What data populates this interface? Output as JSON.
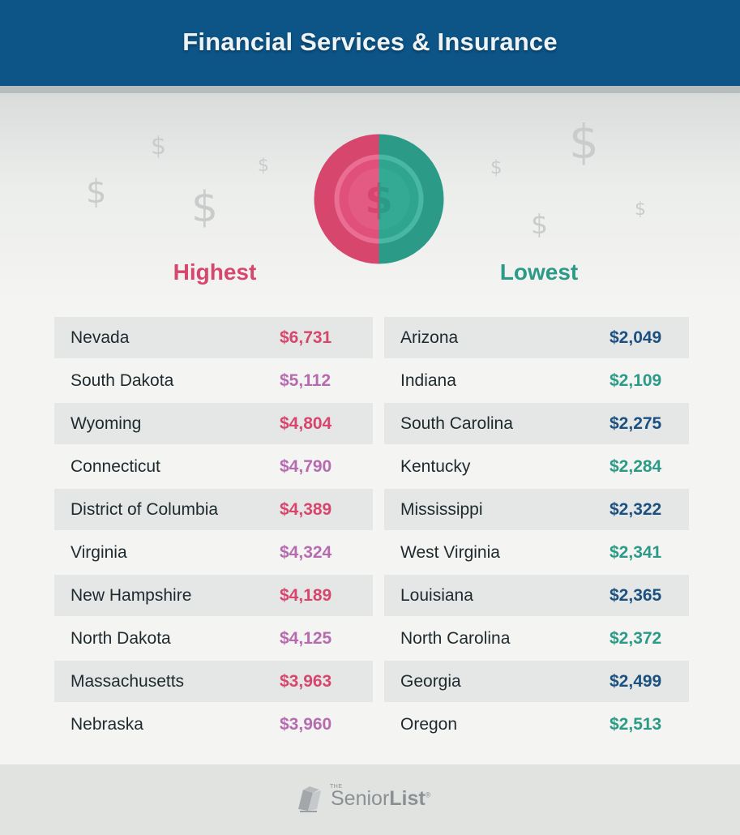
{
  "header": {
    "title": "Financial Services & Insurance"
  },
  "colors": {
    "header_bg": "#0d5587",
    "highest_accent": "#d7466d",
    "highest_alt": "#b66bb0",
    "lowest_accent": "#2b9a87",
    "lowest_alt": "#1c5080"
  },
  "highest": {
    "heading": "Highest",
    "rows": [
      {
        "state": "Nevada",
        "value": "$6,731"
      },
      {
        "state": "South Dakota",
        "value": "$5,112"
      },
      {
        "state": "Wyoming",
        "value": "$4,804"
      },
      {
        "state": "Connecticut",
        "value": "$4,790"
      },
      {
        "state": "District of Columbia",
        "value": "$4,389"
      },
      {
        "state": "Virginia",
        "value": "$4,324"
      },
      {
        "state": "New Hampshire",
        "value": "$4,189"
      },
      {
        "state": "North Dakota",
        "value": "$4,125"
      },
      {
        "state": "Massachusetts",
        "value": "$3,963"
      },
      {
        "state": "Nebraska",
        "value": "$3,960"
      }
    ]
  },
  "lowest": {
    "heading": "Lowest",
    "rows": [
      {
        "state": "Arizona",
        "value": "$2,049"
      },
      {
        "state": "Indiana",
        "value": "$2,109"
      },
      {
        "state": "South Carolina",
        "value": "$2,275"
      },
      {
        "state": "Kentucky",
        "value": "$2,284"
      },
      {
        "state": "Mississippi",
        "value": "$2,322"
      },
      {
        "state": "West Virginia",
        "value": "$2,341"
      },
      {
        "state": "Louisiana",
        "value": "$2,365"
      },
      {
        "state": "North Carolina",
        "value": "$2,372"
      },
      {
        "state": "Georgia",
        "value": "$2,499"
      },
      {
        "state": "Oregon",
        "value": "$2,513"
      }
    ]
  },
  "footer": {
    "logo_the": "THE",
    "logo_senior": "Senior",
    "logo_list": "List",
    "logo_reg": "®"
  }
}
